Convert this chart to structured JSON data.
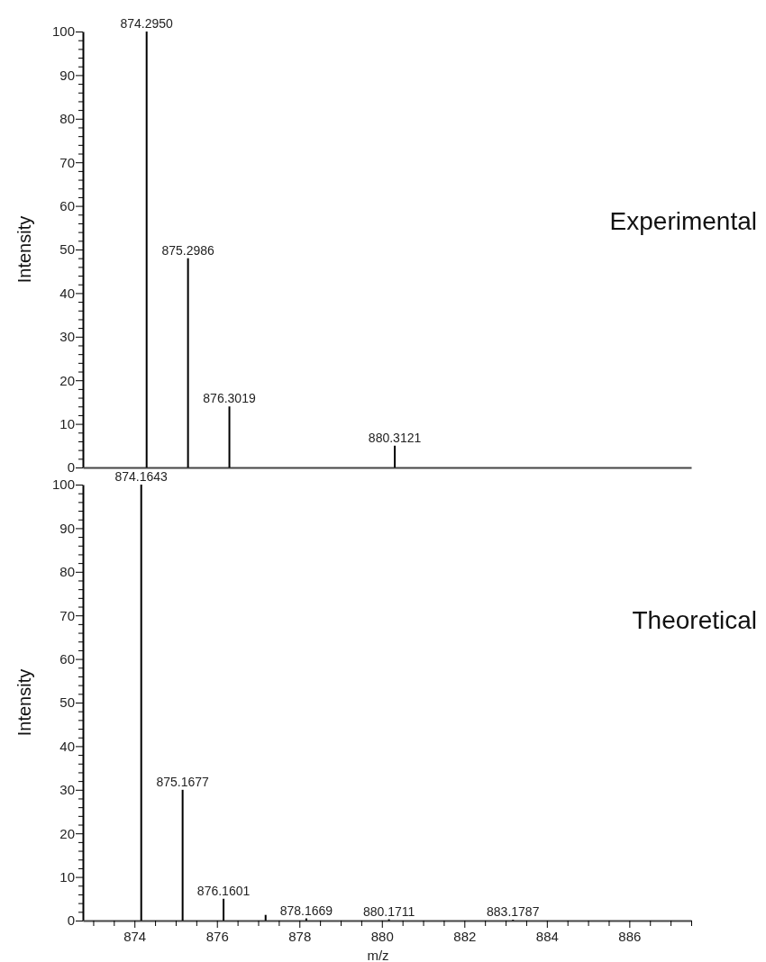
{
  "chart_data": [
    {
      "type": "bar",
      "title": "Experimental",
      "ylabel": "Intensity",
      "x": [
        874.295,
        875.2986,
        876.3019,
        880.3121
      ],
      "series": [
        {
          "color": "#000000",
          "values": [
            100,
            48,
            14,
            5
          ]
        }
      ],
      "annotations": [
        {
          "text": "874.2950",
          "x": 874.295,
          "y": 100
        },
        {
          "text": "875.2986",
          "x": 875.2986,
          "y": 48
        },
        {
          "text": "876.3019",
          "x": 876.3019,
          "y": 14
        },
        {
          "text": "880.3121",
          "x": 880.3121,
          "y": 5
        }
      ],
      "xlim": [
        872.75,
        887.5
      ],
      "ylim": [
        0,
        100
      ],
      "yticks": [
        0,
        {
          "value": 2,
          "label": null
        },
        {
          "value": 4,
          "label": null
        },
        {
          "value": 6,
          "label": null
        },
        {
          "value": 8,
          "label": null
        },
        10,
        {
          "value": 12,
          "label": null
        },
        {
          "value": 14,
          "label": null
        },
        {
          "value": 16,
          "label": null
        },
        {
          "value": 18,
          "label": null
        },
        20,
        {
          "value": 22,
          "label": null
        },
        {
          "value": 24,
          "label": null
        },
        {
          "value": 26,
          "label": null
        },
        {
          "value": 28,
          "label": null
        },
        30,
        {
          "value": 32,
          "label": null
        },
        {
          "value": 34,
          "label": null
        },
        {
          "value": 36,
          "label": null
        },
        {
          "value": 38,
          "label": null
        },
        40,
        {
          "value": 42,
          "label": null
        },
        {
          "value": 44,
          "label": null
        },
        {
          "value": 46,
          "label": null
        },
        {
          "value": 48,
          "label": null
        },
        50,
        {
          "value": 52,
          "label": null
        },
        {
          "value": 54,
          "label": null
        },
        {
          "value": 56,
          "label": null
        },
        {
          "value": 58,
          "label": null
        },
        60,
        {
          "value": 62,
          "label": null
        },
        {
          "value": 64,
          "label": null
        },
        {
          "value": 66,
          "label": null
        },
        {
          "value": 68,
          "label": null
        },
        70,
        {
          "value": 72,
          "label": null
        },
        {
          "value": 74,
          "label": null
        },
        {
          "value": 76,
          "label": null
        },
        {
          "value": 78,
          "label": null
        },
        80,
        {
          "value": 82,
          "label": null
        },
        {
          "value": 84,
          "label": null
        },
        {
          "value": 86,
          "label": null
        },
        {
          "value": 88,
          "label": null
        },
        90,
        {
          "value": 92,
          "label": null
        },
        {
          "value": 94,
          "label": null
        },
        {
          "value": 96,
          "label": null
        },
        {
          "value": 98,
          "label": null
        },
        100
      ],
      "tick_labels": "y"
    },
    {
      "type": "bar",
      "title": "Theoretical",
      "ylabel": "Intensity",
      "xlabel": "m/z",
      "x": [
        874.1643,
        875.1677,
        876.1601,
        877.18,
        878.1669,
        880.1711,
        883.1787
      ],
      "series": [
        {
          "color": "#000000",
          "values": [
            100,
            30,
            5,
            1.3,
            0.5,
            0.3,
            0.2
          ]
        }
      ],
      "annotations": [
        {
          "text": "874.1643",
          "x": 874.1643,
          "y": 100
        },
        {
          "text": "875.1677",
          "x": 875.1677,
          "y": 30
        },
        {
          "text": "876.1601",
          "x": 876.1601,
          "y": 5
        },
        {
          "text": "878.1669",
          "x": 878.1669,
          "y": 0.5
        },
        {
          "text": "880.1711",
          "x": 880.1711,
          "y": 0.3
        },
        {
          "text": "883.1787",
          "x": 883.1787,
          "y": 0.2
        }
      ],
      "xlim": [
        872.75,
        887.5
      ],
      "ylim": [
        0,
        100
      ],
      "xticks": [
        {
          "value": 873,
          "label": null
        },
        {
          "value": 873.5,
          "label": null
        },
        874,
        {
          "value": 874.5,
          "label": null
        },
        {
          "value": 875,
          "label": null
        },
        {
          "value": 875.5,
          "label": null
        },
        876,
        {
          "value": 876.5,
          "label": null
        },
        {
          "value": 877,
          "label": null
        },
        {
          "value": 877.5,
          "label": null
        },
        878,
        {
          "value": 878.5,
          "label": null
        },
        {
          "value": 879,
          "label": null
        },
        {
          "value": 879.5,
          "label": null
        },
        880,
        {
          "value": 880.5,
          "label": null
        },
        {
          "value": 881,
          "label": null
        },
        {
          "value": 881.5,
          "label": null
        },
        882,
        {
          "value": 882.5,
          "label": null
        },
        {
          "value": 883,
          "label": null
        },
        {
          "value": 883.5,
          "label": null
        },
        884,
        {
          "value": 884.5,
          "label": null
        },
        {
          "value": 885,
          "label": null
        },
        {
          "value": 885.5,
          "label": null
        },
        886,
        {
          "value": 886.5,
          "label": null
        },
        {
          "value": 887,
          "label": null
        },
        {
          "value": 887.5,
          "label": null
        }
      ],
      "yticks": [
        0,
        {
          "value": 2,
          "label": null
        },
        {
          "value": 4,
          "label": null
        },
        {
          "value": 6,
          "label": null
        },
        {
          "value": 8,
          "label": null
        },
        10,
        {
          "value": 12,
          "label": null
        },
        {
          "value": 14,
          "label": null
        },
        {
          "value": 16,
          "label": null
        },
        {
          "value": 18,
          "label": null
        },
        20,
        {
          "value": 22,
          "label": null
        },
        {
          "value": 24,
          "label": null
        },
        {
          "value": 26,
          "label": null
        },
        {
          "value": 28,
          "label": null
        },
        30,
        {
          "value": 32,
          "label": null
        },
        {
          "value": 34,
          "label": null
        },
        {
          "value": 36,
          "label": null
        },
        {
          "value": 38,
          "label": null
        },
        40,
        {
          "value": 42,
          "label": null
        },
        {
          "value": 44,
          "label": null
        },
        {
          "value": 46,
          "label": null
        },
        {
          "value": 48,
          "label": null
        },
        50,
        {
          "value": 52,
          "label": null
        },
        {
          "value": 54,
          "label": null
        },
        {
          "value": 56,
          "label": null
        },
        {
          "value": 58,
          "label": null
        },
        60,
        {
          "value": 62,
          "label": null
        },
        {
          "value": 64,
          "label": null
        },
        {
          "value": 66,
          "label": null
        },
        {
          "value": 68,
          "label": null
        },
        70,
        {
          "value": 72,
          "label": null
        },
        {
          "value": 74,
          "label": null
        },
        {
          "value": 76,
          "label": null
        },
        {
          "value": 78,
          "label": null
        },
        80,
        {
          "value": 82,
          "label": null
        },
        {
          "value": 84,
          "label": null
        },
        {
          "value": 86,
          "label": null
        },
        {
          "value": 88,
          "label": null
        },
        90,
        {
          "value": 92,
          "label": null
        },
        {
          "value": 94,
          "label": null
        },
        {
          "value": 96,
          "label": null
        },
        {
          "value": 98,
          "label": null
        },
        100
      ]
    }
  ]
}
